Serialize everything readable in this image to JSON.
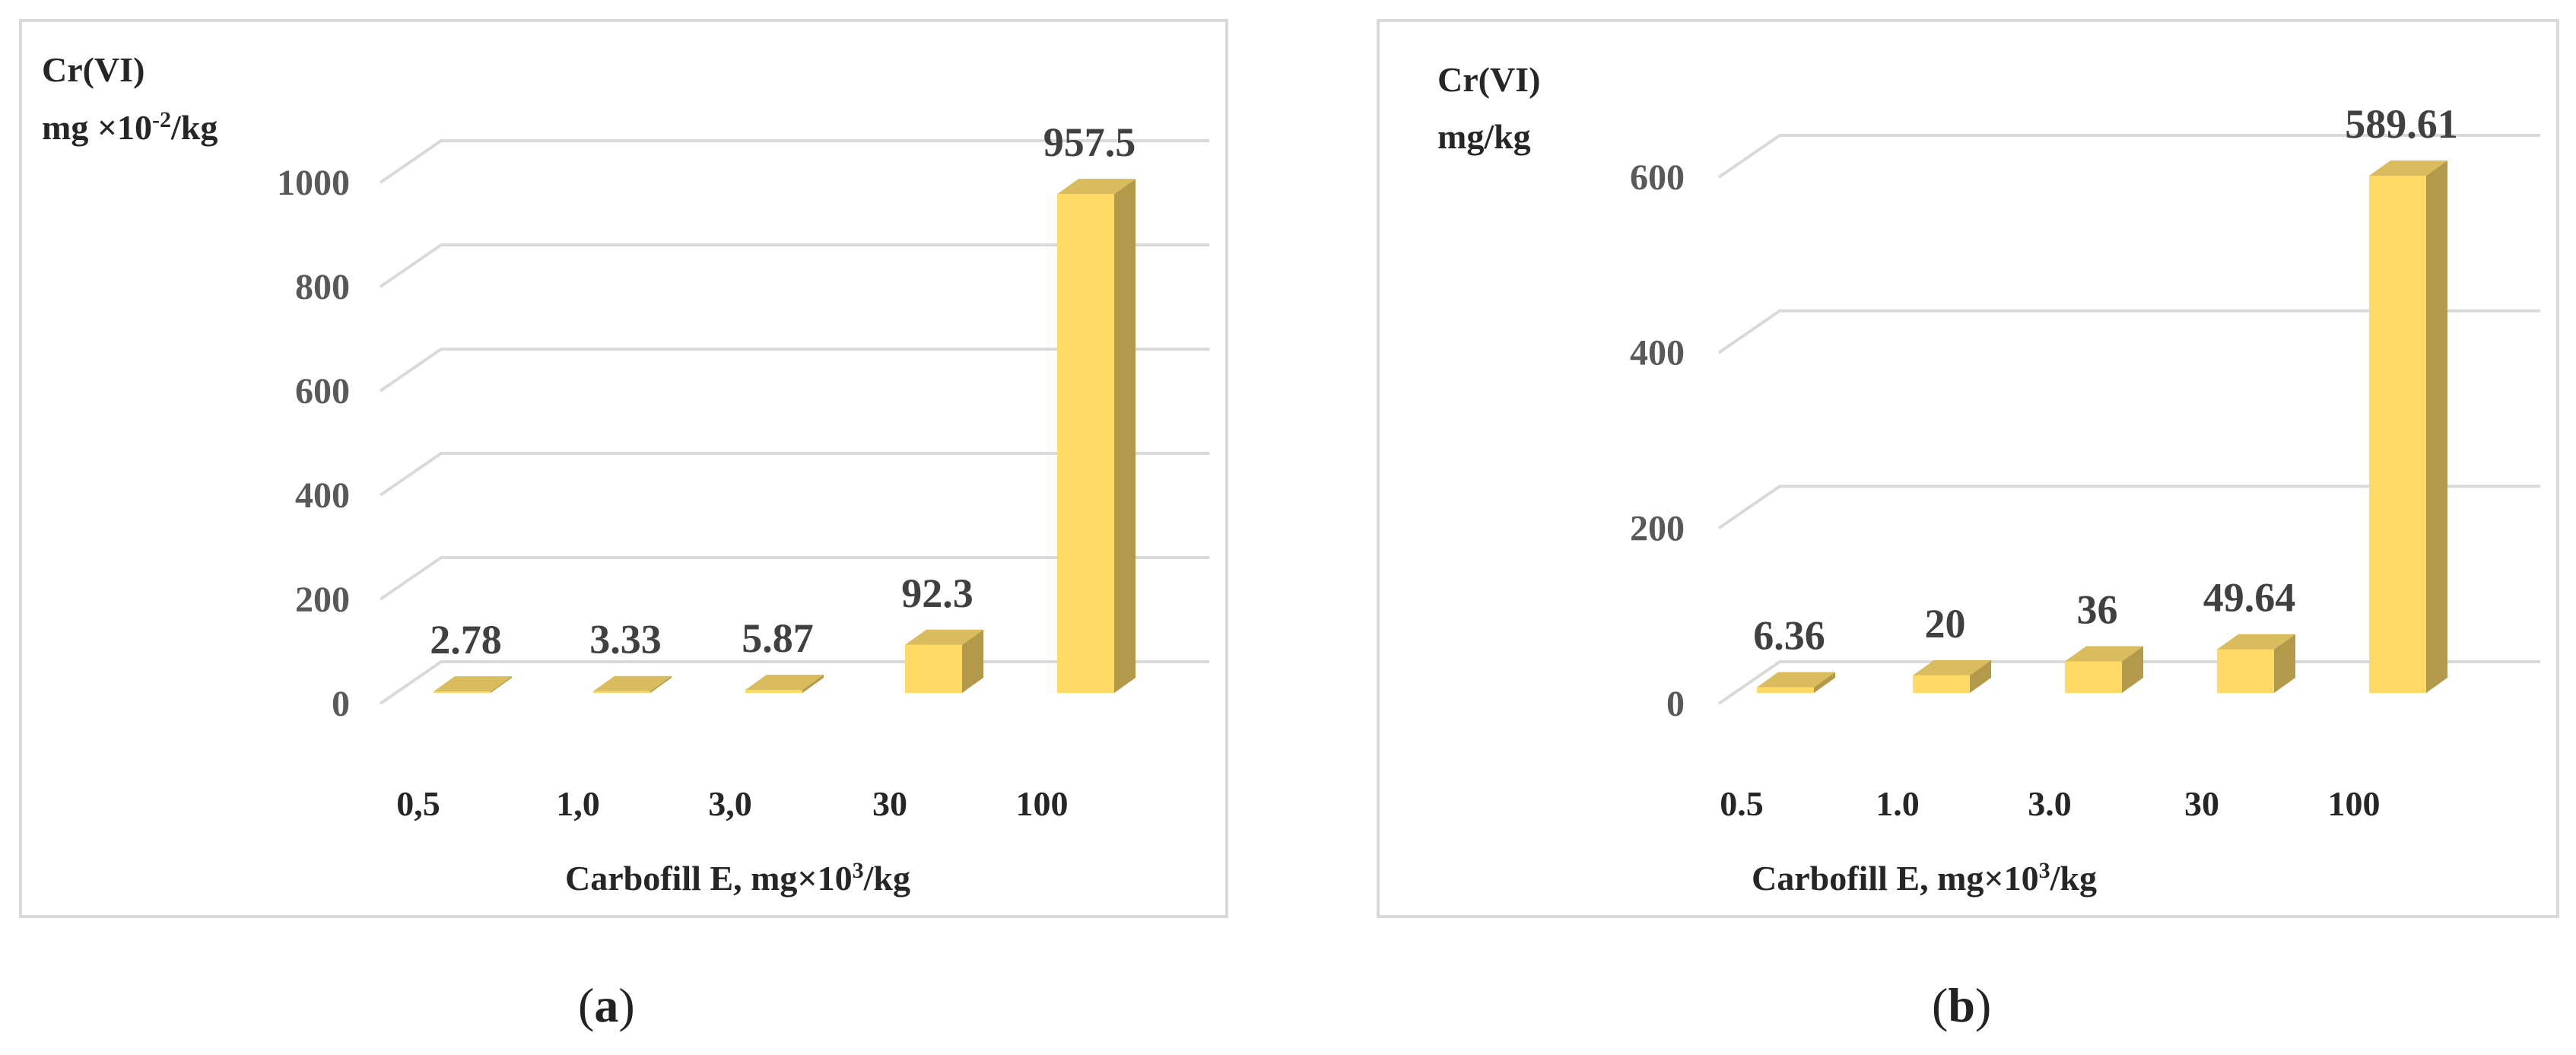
{
  "colors": {
    "bar_front": "#FFD966",
    "bar_side": "#B39A4A",
    "bar_top": "#D9BC5E",
    "grid": "#D9D9D9",
    "border": "#D9D9D9",
    "tick_text": "#595959",
    "label_text": "#404040",
    "caption_text": "#222222"
  },
  "captions": {
    "a": "a",
    "b": "b"
  },
  "chart_data": [
    {
      "type": "bar",
      "panel": "a",
      "ylabel_line1": "Cr(VI)",
      "ylabel_line2_pre": "mg ×10",
      "ylabel_line2_sup": "-2",
      "ylabel_line2_post": "/kg",
      "xlabel_pre": "Carbofill E, mg×10",
      "xlabel_sup": "3",
      "xlabel_post": "/kg",
      "categories": [
        "0,5",
        "1,0",
        "3,0",
        "30",
        "100"
      ],
      "values": [
        2.78,
        3.33,
        5.87,
        92.3,
        957.5
      ],
      "data_labels": [
        "2.78",
        "3.33",
        "5.87",
        "92.3",
        "957.5"
      ],
      "yticks": [
        0,
        200,
        400,
        600,
        800,
        1000
      ],
      "ytick_labels": [
        "0",
        "200",
        "400",
        "600",
        "800",
        "1000"
      ],
      "ylim": [
        0,
        1000
      ],
      "grid": true
    },
    {
      "type": "bar",
      "panel": "b",
      "ylabel_line1": "Cr(VI)",
      "ylabel_line2_pre": "mg/kg",
      "ylabel_line2_sup": "",
      "ylabel_line2_post": "",
      "xlabel_pre": "Carbofill E, mg×10",
      "xlabel_sup": "3",
      "xlabel_post": "/kg",
      "categories": [
        "0.5",
        "1.0",
        "3.0",
        "30",
        "100"
      ],
      "values": [
        6.36,
        20,
        36,
        49.64,
        589.61
      ],
      "data_labels": [
        "6.36",
        "20",
        "36",
        "49.64",
        "589.61"
      ],
      "yticks": [
        0,
        200,
        400,
        600
      ],
      "ytick_labels": [
        "0",
        "200",
        "400",
        "600"
      ],
      "ylim": [
        0,
        600
      ],
      "grid": true
    }
  ]
}
